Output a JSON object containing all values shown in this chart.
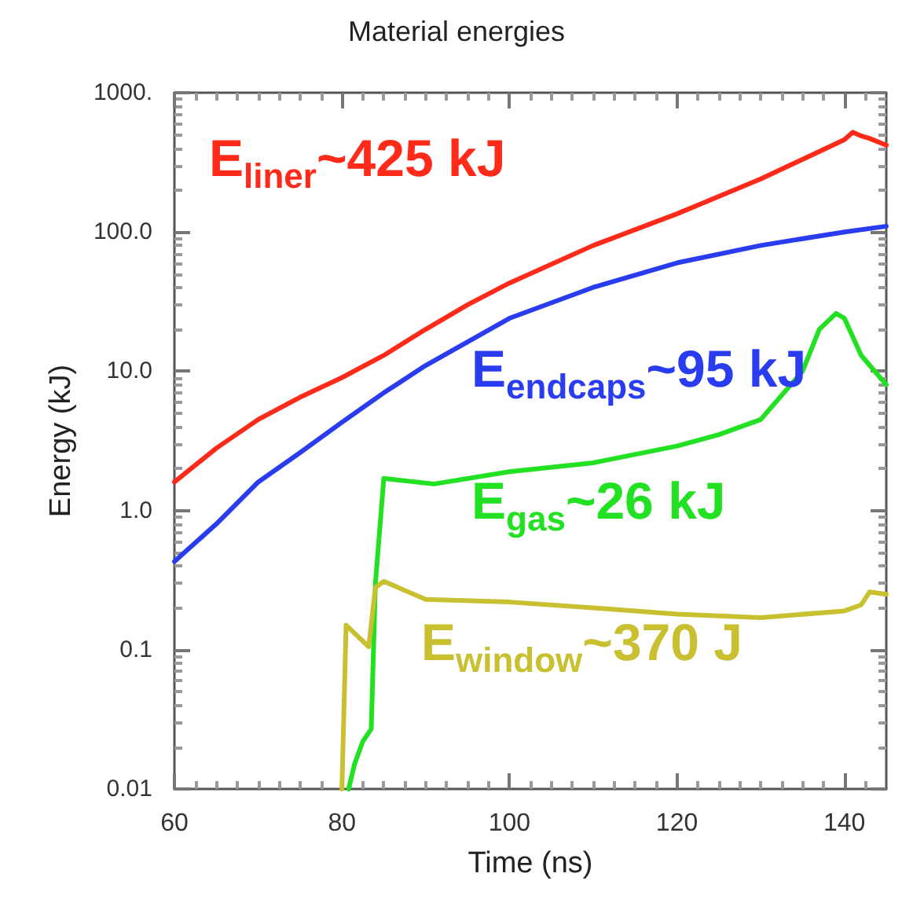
{
  "chart_data": {
    "type": "line",
    "title": "Material energies",
    "xlabel": "Time (ns)",
    "ylabel": "Energy (kJ)",
    "log": "y",
    "grid": false,
    "marker": "none",
    "line_style": "solid",
    "xlim": [
      60,
      145
    ],
    "xticks": [
      60,
      80,
      100,
      120,
      140
    ],
    "ylim": [
      0.01,
      1000
    ],
    "yticks": [
      {
        "value": 0.01,
        "label": "0.01"
      },
      {
        "value": 0.1,
        "label": "0.1"
      },
      {
        "value": 1,
        "label": "1.0"
      },
      {
        "value": 10,
        "label": "10.0"
      },
      {
        "value": 100,
        "label": "100.0"
      },
      {
        "value": 1000,
        "label": "1000."
      }
    ],
    "series": [
      {
        "color": "#ff2a1a",
        "x": [
          60,
          65,
          70,
          75,
          80,
          85,
          90,
          95,
          100,
          110,
          120,
          130,
          140,
          141,
          142,
          143,
          145
        ],
        "values": [
          1.6,
          2.8,
          4.5,
          6.5,
          9,
          13,
          20,
          30,
          43,
          80,
          135,
          240,
          460,
          520,
          490,
          470,
          420
        ]
      },
      {
        "color": "#2a3cf0",
        "x": [
          60,
          65,
          70,
          75,
          80,
          85,
          90,
          100,
          110,
          120,
          130,
          140,
          145
        ],
        "values": [
          0.43,
          0.8,
          1.6,
          2.6,
          4.3,
          7,
          11,
          24,
          40,
          60,
          80,
          100,
          110
        ]
      },
      {
        "color": "#22e022",
        "x": [
          80.8,
          81.5,
          82.5,
          83.5,
          84,
          85,
          91,
          100,
          110,
          120,
          125,
          130,
          135,
          137,
          139,
          140,
          142,
          145
        ],
        "values": [
          0.01,
          0.015,
          0.022,
          0.027,
          0.3,
          1.7,
          1.55,
          1.9,
          2.2,
          2.9,
          3.5,
          4.5,
          10,
          20,
          26,
          24,
          13,
          8
        ]
      },
      {
        "color": "#c8c030",
        "x": [
          80,
          80.5,
          83.2,
          84,
          85,
          90,
          100,
          110,
          120,
          130,
          140,
          142,
          143,
          145
        ],
        "values": [
          0.01,
          0.15,
          0.105,
          0.28,
          0.31,
          0.23,
          0.22,
          0.2,
          0.18,
          0.17,
          0.19,
          0.21,
          0.26,
          0.25
        ]
      }
    ],
    "annotations": [
      "E$_{liner}$~425 kJ",
      "E$_{endcaps}$~95 kJ",
      "E$_{gas}$~26 kJ",
      "E$_{window}$~370 J"
    ]
  }
}
